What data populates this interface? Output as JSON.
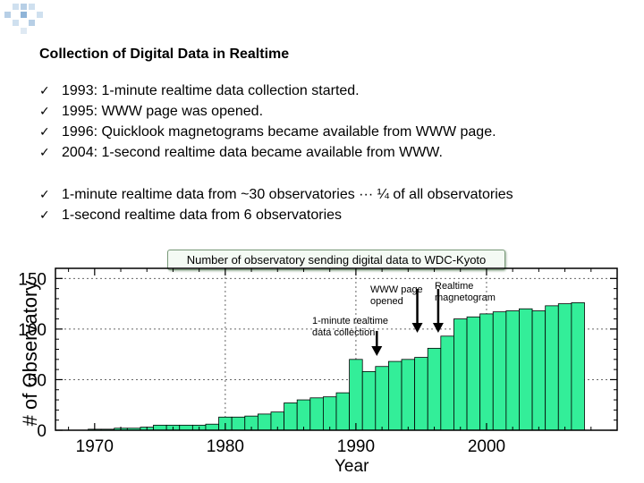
{
  "slide": {
    "title": "Collection of Digital Data in Realtime",
    "bullets_group1": [
      "1993: 1-minute realtime data collection started.",
      "1995: WWW page was opened.",
      "1996: Quicklook magnetograms became available from WWW page.",
      "2004: 1-second realtime data became available from WWW."
    ],
    "bullets_group2": [
      "1-minute realtime data from ~30 observatories ··· ¼ of all observatories",
      "1-second realtime data from 6 observatories"
    ],
    "check_glyph": "✓",
    "chart_caption": "Number of observatory sending digital data to WDC-Kyoto"
  },
  "chart_data": {
    "type": "bar",
    "title": "",
    "xlabel": "Year",
    "ylabel": "# of Observatory",
    "x": [
      1970,
      1971,
      1972,
      1973,
      1974,
      1975,
      1976,
      1977,
      1978,
      1979,
      1980,
      1981,
      1982,
      1983,
      1984,
      1985,
      1986,
      1987,
      1988,
      1989,
      1990,
      1991,
      1992,
      1993,
      1994,
      1995,
      1996,
      1997,
      1998,
      1999,
      2000,
      2001,
      2002,
      2003,
      2004,
      2005,
      2006,
      2007
    ],
    "values": [
      1,
      1,
      2,
      2,
      3,
      5,
      5,
      5,
      5,
      6,
      13,
      13,
      14,
      16,
      18,
      27,
      30,
      32,
      33,
      37,
      70,
      58,
      63,
      68,
      70,
      72,
      81,
      93,
      110,
      112,
      115,
      117,
      118,
      120,
      118,
      123,
      125,
      126
    ],
    "xlim": [
      1967,
      2010
    ],
    "ylim": [
      0,
      160
    ],
    "xticks": [
      1970,
      1980,
      1990,
      2000
    ],
    "yticks": [
      0,
      50,
      100,
      150
    ],
    "dashed_grid_x": [
      1980,
      1990,
      2000
    ],
    "dashed_grid_y": [
      50,
      100,
      150
    ],
    "bar_color": "#33ee99",
    "annotations": [
      {
        "text": "1-minute realtime data collection",
        "year": 1993
      },
      {
        "text": "WWW page opened",
        "year": 1995
      },
      {
        "text": "Realtime magnetogram",
        "year": 1996
      }
    ]
  }
}
